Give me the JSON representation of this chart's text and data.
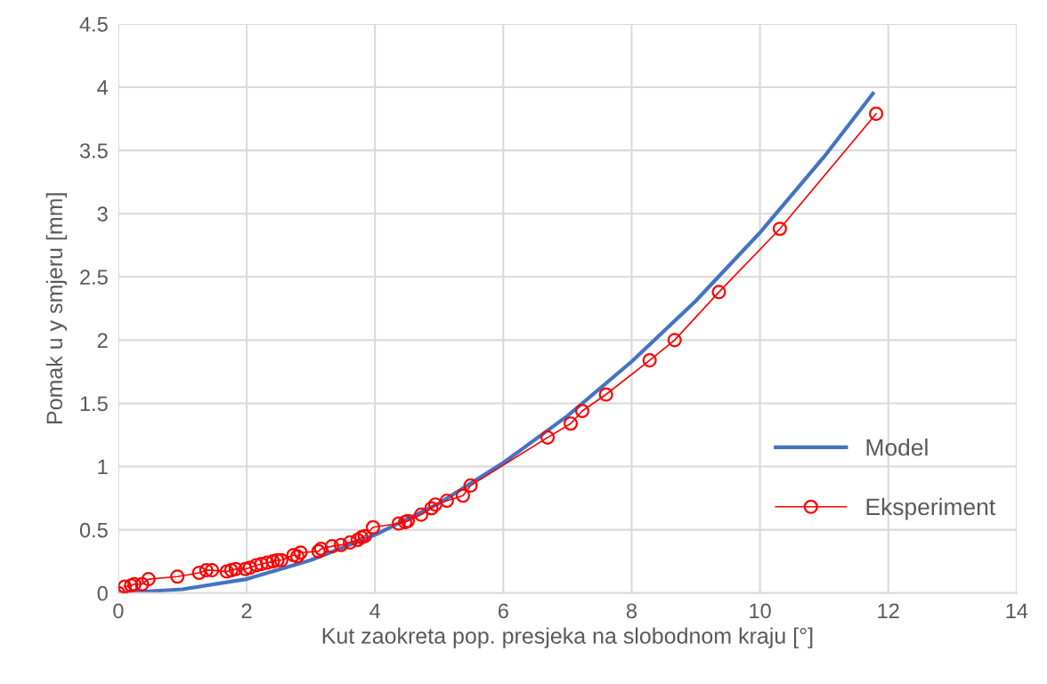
{
  "chart_data": {
    "type": "line",
    "xlabel": "Kut zaokreta pop. presjeka na slobodnom kraju [°]",
    "ylabel": "Pomak u y smjeru [mm]",
    "xlim": [
      0,
      14
    ],
    "xticks": [
      0,
      2,
      4,
      6,
      8,
      10,
      12,
      14
    ],
    "ylim": [
      0,
      4.5
    ],
    "yticks": [
      0,
      0.5,
      1,
      1.5,
      2,
      2.5,
      3,
      3.5,
      4,
      4.5
    ],
    "grid": true,
    "legend": "right",
    "series": [
      {
        "name": "Model",
        "color": "#4472c4",
        "marker": "none",
        "x": [
          0,
          1,
          2,
          3,
          4,
          5,
          6,
          7,
          8,
          9,
          10,
          11,
          11.76
        ],
        "values": [
          0,
          0.03,
          0.11,
          0.26,
          0.46,
          0.71,
          1.03,
          1.4,
          1.83,
          2.31,
          2.85,
          3.45,
          3.95
        ]
      },
      {
        "name": "Eksperiment",
        "color": "#ff0000",
        "marker": "circle",
        "x": [
          0,
          0.03,
          0.1,
          0.2,
          0.25,
          0.37,
          0.47,
          0.92,
          1.26,
          1.37,
          1.46,
          1.69,
          1.76,
          1.83,
          1.98,
          2.05,
          2.15,
          2.23,
          2.32,
          2.41,
          2.48,
          2.54,
          2.73,
          2.79,
          2.84,
          3.12,
          3.16,
          3.33,
          3.47,
          3.61,
          3.73,
          3.79,
          3.84,
          3.97,
          4.37,
          4.47,
          4.51,
          4.72,
          4.88,
          4.94,
          5.12,
          5.37,
          5.49,
          6.69,
          7.05,
          7.23,
          7.6,
          8.28,
          8.67,
          9.36,
          10.31,
          11.81
        ],
        "values": [
          0,
          null,
          0.05,
          0.06,
          0.07,
          0.07,
          0.11,
          0.13,
          0.16,
          0.18,
          0.18,
          0.17,
          0.18,
          0.19,
          0.19,
          0.2,
          0.22,
          0.23,
          0.24,
          0.25,
          0.26,
          0.26,
          0.3,
          0.29,
          0.32,
          0.33,
          0.35,
          0.37,
          0.38,
          0.4,
          0.42,
          0.44,
          0.45,
          0.52,
          0.55,
          0.56,
          0.57,
          0.62,
          0.67,
          0.7,
          0.73,
          0.77,
          0.85,
          1.23,
          1.34,
          1.44,
          1.57,
          1.84,
          2.0,
          2.38,
          2.88,
          3.79
        ]
      }
    ]
  }
}
